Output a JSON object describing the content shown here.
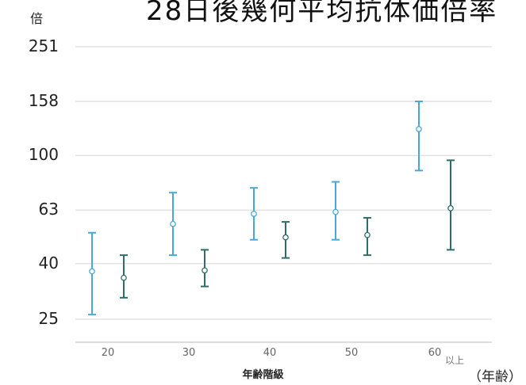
{
  "chart_data": {
    "type": "errorbar",
    "title": "28日後幾何平均抗体価倍率",
    "y_unit": "倍",
    "xlabel": "年齢階級",
    "x_unit": "（年齢）",
    "x_last_suffix": "以上",
    "y_scale": "log",
    "y_ticks": [
      "25",
      "40",
      "63",
      "100",
      "158",
      "251"
    ],
    "y_tick_values": [
      25,
      40,
      63,
      100,
      158,
      251
    ],
    "categories": [
      "20",
      "30",
      "40",
      "50",
      "60"
    ],
    "series": [
      {
        "color": "#4aa8d8",
        "points": [
          {
            "x": "20",
            "y": 37.5,
            "lower": 26,
            "upper": 52
          },
          {
            "x": "30",
            "y": 56,
            "lower": 43,
            "upper": 73
          },
          {
            "x": "40",
            "y": 61,
            "lower": 49,
            "upper": 76
          },
          {
            "x": "50",
            "y": 62,
            "lower": 49,
            "upper": 80
          },
          {
            "x": "60",
            "y": 125,
            "lower": 88,
            "upper": 158
          }
        ]
      },
      {
        "color": "#2e6e6a",
        "points": [
          {
            "x": "20",
            "y": 35.5,
            "lower": 30,
            "upper": 43
          },
          {
            "x": "30",
            "y": 37.8,
            "lower": 33,
            "upper": 45
          },
          {
            "x": "40",
            "y": 50,
            "lower": 42,
            "upper": 57
          },
          {
            "x": "50",
            "y": 51,
            "lower": 43,
            "upper": 59
          },
          {
            "x": "60",
            "y": 64,
            "lower": 45,
            "upper": 96
          }
        ]
      }
    ],
    "grid": true
  }
}
